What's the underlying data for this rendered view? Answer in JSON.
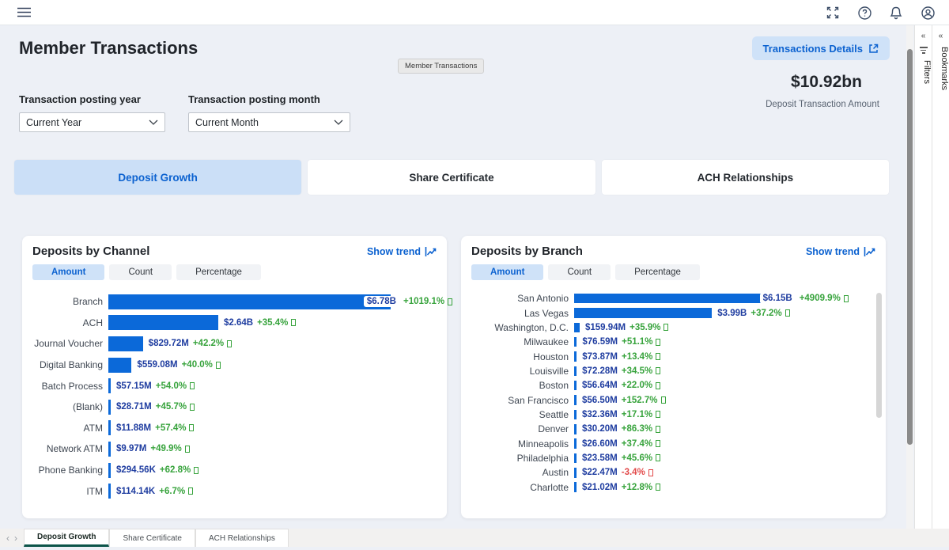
{
  "topbar": {
    "icons": [
      "menu-icon",
      "fullscreen-icon",
      "help-icon",
      "notifications-icon",
      "account-icon"
    ]
  },
  "header": {
    "title": "Member Transactions",
    "tooltip": "Member Transactions",
    "details_button": "Transactions Details",
    "kpi_value": "$10.92bn",
    "kpi_label": "Deposit Transaction Amount"
  },
  "slicers": {
    "year_label": "Transaction posting year",
    "year_value": "Current Year",
    "month_label": "Transaction posting month",
    "month_value": "Current Month"
  },
  "section_tabs": [
    {
      "label": "Deposit Growth",
      "active": true
    },
    {
      "label": "Share Certificate",
      "active": false
    },
    {
      "label": "ACH Relationships",
      "active": false
    }
  ],
  "chart_data": [
    {
      "type": "bar",
      "orientation": "horizontal",
      "title": "Deposits by Channel",
      "action_label": "Show trend",
      "view_tabs": [
        "Amount",
        "Count",
        "Percentage"
      ],
      "active_view": "Amount",
      "bar_scale": 0.86,
      "categories": [
        "Branch",
        "ACH",
        "Journal Voucher",
        "Digital Banking",
        "Batch Process",
        "(Blank)",
        "ATM",
        "Network ATM",
        "Phone Banking",
        "ITM"
      ],
      "value_labels": [
        "$6.78B",
        "$2.64B",
        "$829.72M",
        "$559.08M",
        "$57.15M",
        "$28.71M",
        "$11.88M",
        "$9.97M",
        "$294.56K",
        "$114.14K"
      ],
      "values_usd": [
        6780000000,
        2640000000,
        829720000,
        559080000,
        57150000,
        28710000,
        11880000,
        9970000,
        294560,
        114140
      ],
      "change_labels": [
        "+1019.1%",
        "+35.4%",
        "+42.2%",
        "+40.0%",
        "+54.0%",
        "+45.7%",
        "+57.4%",
        "+49.9%",
        "+62.8%",
        "+6.7%"
      ]
    },
    {
      "type": "bar",
      "orientation": "horizontal",
      "title": "Deposits by Branch",
      "action_label": "Show trend",
      "view_tabs": [
        "Amount",
        "Count",
        "Percentage"
      ],
      "active_view": "Amount",
      "bar_scale": 0.705,
      "categories": [
        "San Antonio",
        "Las Vegas",
        "Washington, D.C.",
        "Milwaukee",
        "Houston",
        "Louisville",
        "Boston",
        "San Francisco",
        "Seattle",
        "Denver",
        "Minneapolis",
        "Philadelphia",
        "Austin",
        "Charlotte"
      ],
      "value_labels": [
        "$6.15B",
        "$3.99B",
        "$159.94M",
        "$76.59M",
        "$73.87M",
        "$72.28M",
        "$56.64M",
        "$56.50M",
        "$32.36M",
        "$30.20M",
        "$26.60M",
        "$23.58M",
        "$22.47M",
        "$21.02M"
      ],
      "values_usd": [
        6150000000,
        3990000000,
        159940000,
        76590000,
        73870000,
        72280000,
        56640000,
        56500000,
        32360000,
        30200000,
        26600000,
        23580000,
        22470000,
        21020000
      ],
      "change_labels": [
        "+4909.9%",
        "+37.2%",
        "+35.9%",
        "+51.1%",
        "+13.4%",
        "+34.5%",
        "+22.0%",
        "+152.7%",
        "+17.1%",
        "+86.3%",
        "+37.4%",
        "+45.6%",
        "-3.4%",
        "+12.8%"
      ]
    }
  ],
  "side_panels": {
    "filters_label": "Filters",
    "bookmarks_label": "Bookmarks"
  },
  "footer_tabs": [
    {
      "label": "Deposit Growth",
      "active": true
    },
    {
      "label": "Share Certificate",
      "active": false
    },
    {
      "label": "ACH Relationships",
      "active": false
    }
  ],
  "colors": {
    "bar": "#0b69d9",
    "value_text": "#1f3da0",
    "positive": "#37a33c",
    "negative": "#e24a4a",
    "accent": "#0c62d0",
    "active_tab_bg": "#cbdff7",
    "footer_active_underline": "#0c5449"
  }
}
